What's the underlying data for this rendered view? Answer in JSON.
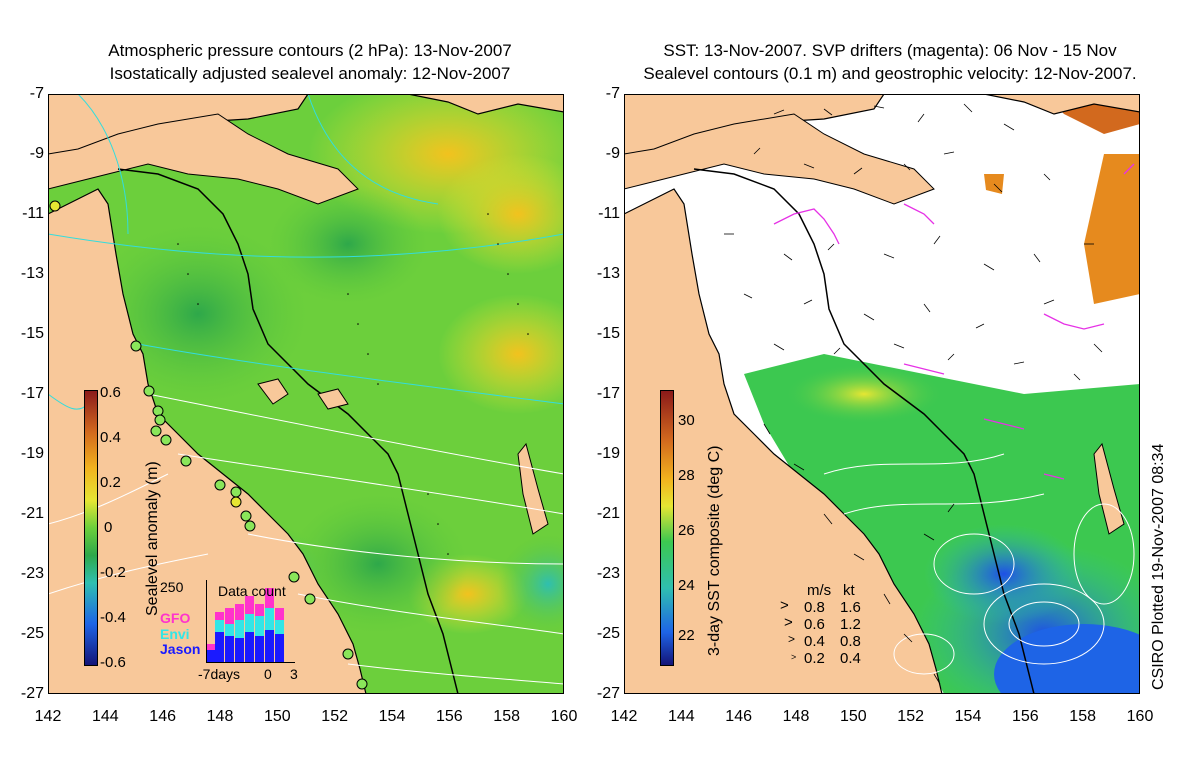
{
  "left_panel": {
    "title_line1": "Atmospheric pressure contours (2 hPa): 13-Nov-2007",
    "title_line2": "Isostatically adjusted sealevel anomaly: 12-Nov-2007",
    "colorbar": {
      "label": "Sealevel anomaly (m)",
      "ticks": [
        "0.6",
        "0.4",
        "0.2",
        "0",
        "-0.2",
        "-0.4",
        "-0.6"
      ]
    },
    "inset": {
      "title": "Data count",
      "ymax_label": "250",
      "legend": [
        {
          "name": "GFO",
          "color": "#ff33cc"
        },
        {
          "name": "Envi",
          "color": "#33e6e6"
        },
        {
          "name": "Jason",
          "color": "#1a1aff"
        }
      ],
      "x_labels": [
        "-7days",
        "0",
        "3"
      ]
    }
  },
  "right_panel": {
    "title_line1": "SST: 13-Nov-2007. SVP drifters (magenta): 06 Nov - 15 Nov",
    "title_line2": "Sealevel contours (0.1 m) and geostrophic velocity: 12-Nov-2007.",
    "colorbar": {
      "label": "3-day SST composite (deg C)",
      "ticks": [
        "30",
        "28",
        "26",
        "24",
        "22"
      ]
    },
    "velocity_key": {
      "header_ms": "m/s",
      "header_kt": "kt",
      "rows": [
        {
          "ms": "0.8",
          "kt": "1.6"
        },
        {
          "ms": "0.6",
          "kt": "1.2"
        },
        {
          "ms": "0.4",
          "kt": "0.8"
        },
        {
          "ms": "0.2",
          "kt": "0.4"
        }
      ]
    },
    "credit": "CSIRO Plotted 19-Nov-2007 08:34"
  },
  "axes": {
    "y_ticks": [
      "-7",
      "-9",
      "-11",
      "-13",
      "-15",
      "-17",
      "-19",
      "-21",
      "-23",
      "-25",
      "-27"
    ],
    "x_ticks": [
      "142",
      "144",
      "146",
      "148",
      "150",
      "152",
      "154",
      "156",
      "158",
      "160"
    ]
  },
  "colors": {
    "land": "#f8c89a",
    "sla_green": "#5cc83c",
    "sla_yellow": "#e6e633",
    "sst_green": "#3cc850",
    "sst_blue": "#1e64e6",
    "drifter": "#e632e6"
  }
}
